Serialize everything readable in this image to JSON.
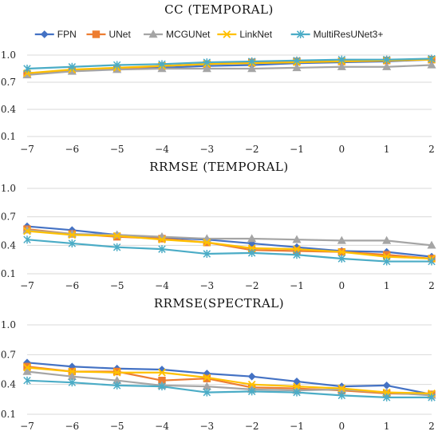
{
  "chart_data": [
    {
      "type": "line",
      "title": "CC (TEMPORAL)",
      "categories": [
        "-7",
        "-6",
        "-5",
        "-4",
        "-3",
        "-2",
        "-1",
        "0",
        "1",
        "2"
      ],
      "ylim": [
        0.1,
        1.0
      ],
      "yticks": [
        "0.1",
        "0.4",
        "0.7",
        "1.0"
      ],
      "grid": true,
      "legend": "top",
      "series": [
        {
          "name": "FPN",
          "color": "#4472c4",
          "marker": "diamond",
          "values": [
            0.8,
            0.83,
            0.85,
            0.86,
            0.88,
            0.89,
            0.91,
            0.92,
            0.93,
            0.95
          ]
        },
        {
          "name": "UNet",
          "color": "#ed7d31",
          "marker": "square",
          "values": [
            0.79,
            0.83,
            0.85,
            0.88,
            0.9,
            0.92,
            0.93,
            0.93,
            0.94,
            0.95
          ]
        },
        {
          "name": "MCGUNet",
          "color": "#a5a5a5",
          "marker": "triangle",
          "values": [
            0.78,
            0.82,
            0.84,
            0.85,
            0.85,
            0.85,
            0.86,
            0.87,
            0.87,
            0.89
          ]
        },
        {
          "name": "LinkNet",
          "color": "#ffc000",
          "marker": "x",
          "values": [
            0.8,
            0.84,
            0.86,
            0.88,
            0.9,
            0.91,
            0.92,
            0.93,
            0.94,
            0.95
          ]
        },
        {
          "name": "MultiResUNet3+",
          "color": "#4bacc6",
          "marker": "star",
          "values": [
            0.85,
            0.87,
            0.89,
            0.9,
            0.92,
            0.93,
            0.94,
            0.95,
            0.95,
            0.96
          ]
        }
      ]
    },
    {
      "type": "line",
      "title": "RRMSE (TEMPORAL)",
      "categories": [
        "-7",
        "-6",
        "-5",
        "-4",
        "-3",
        "-2",
        "-1",
        "0",
        "1",
        "2"
      ],
      "ylim": [
        0.1,
        1.0
      ],
      "yticks": [
        "0.1",
        "0.4",
        "0.7",
        "1.0"
      ],
      "grid": true,
      "series": [
        {
          "name": "FPN",
          "color": "#4472c4",
          "marker": "diamond",
          "values": [
            0.6,
            0.56,
            0.51,
            0.48,
            0.46,
            0.42,
            0.38,
            0.34,
            0.33,
            0.28
          ]
        },
        {
          "name": "UNet",
          "color": "#ed7d31",
          "marker": "square",
          "values": [
            0.57,
            0.52,
            0.49,
            0.47,
            0.43,
            0.35,
            0.34,
            0.33,
            0.3,
            0.26
          ]
        },
        {
          "name": "MCGUNet",
          "color": "#a5a5a5",
          "marker": "triangle",
          "values": [
            0.56,
            0.52,
            0.51,
            0.49,
            0.47,
            0.47,
            0.46,
            0.45,
            0.45,
            0.4
          ]
        },
        {
          "name": "LinkNet",
          "color": "#ffc000",
          "marker": "x",
          "values": [
            0.55,
            0.51,
            0.5,
            0.46,
            0.43,
            0.37,
            0.36,
            0.33,
            0.28,
            0.26
          ]
        },
        {
          "name": "MultiResUNet3+",
          "color": "#4bacc6",
          "marker": "star",
          "values": [
            0.46,
            0.42,
            0.38,
            0.36,
            0.31,
            0.32,
            0.3,
            0.26,
            0.23,
            0.23
          ]
        }
      ]
    },
    {
      "type": "line",
      "title": "RRMSE(SPECTRAL)",
      "categories": [
        "-7",
        "-6",
        "-5",
        "-4",
        "-3",
        "-2",
        "-1",
        "0",
        "1",
        "2"
      ],
      "ylim": [
        0.1,
        1.0
      ],
      "yticks": [
        "0.1",
        "0.4",
        "0.7",
        "1.0"
      ],
      "grid": true,
      "series": [
        {
          "name": "FPN",
          "color": "#4472c4",
          "marker": "diamond",
          "values": [
            0.62,
            0.58,
            0.56,
            0.55,
            0.51,
            0.48,
            0.43,
            0.38,
            0.39,
            0.3
          ]
        },
        {
          "name": "UNet",
          "color": "#ed7d31",
          "marker": "square",
          "values": [
            0.58,
            0.53,
            0.53,
            0.44,
            0.46,
            0.37,
            0.36,
            0.34,
            0.31,
            0.3
          ]
        },
        {
          "name": "MCGUNet",
          "color": "#a5a5a5",
          "marker": "triangle",
          "values": [
            0.53,
            0.48,
            0.44,
            0.39,
            0.38,
            0.35,
            0.34,
            0.35,
            0.32,
            0.29
          ]
        },
        {
          "name": "LinkNet",
          "color": "#ffc000",
          "marker": "x",
          "values": [
            0.57,
            0.53,
            0.52,
            0.52,
            0.47,
            0.4,
            0.38,
            0.36,
            0.32,
            0.31
          ]
        },
        {
          "name": "MultiResUNet3+",
          "color": "#4bacc6",
          "marker": "star",
          "values": [
            0.44,
            0.42,
            0.39,
            0.38,
            0.32,
            0.33,
            0.32,
            0.29,
            0.27,
            0.27
          ]
        }
      ]
    }
  ]
}
